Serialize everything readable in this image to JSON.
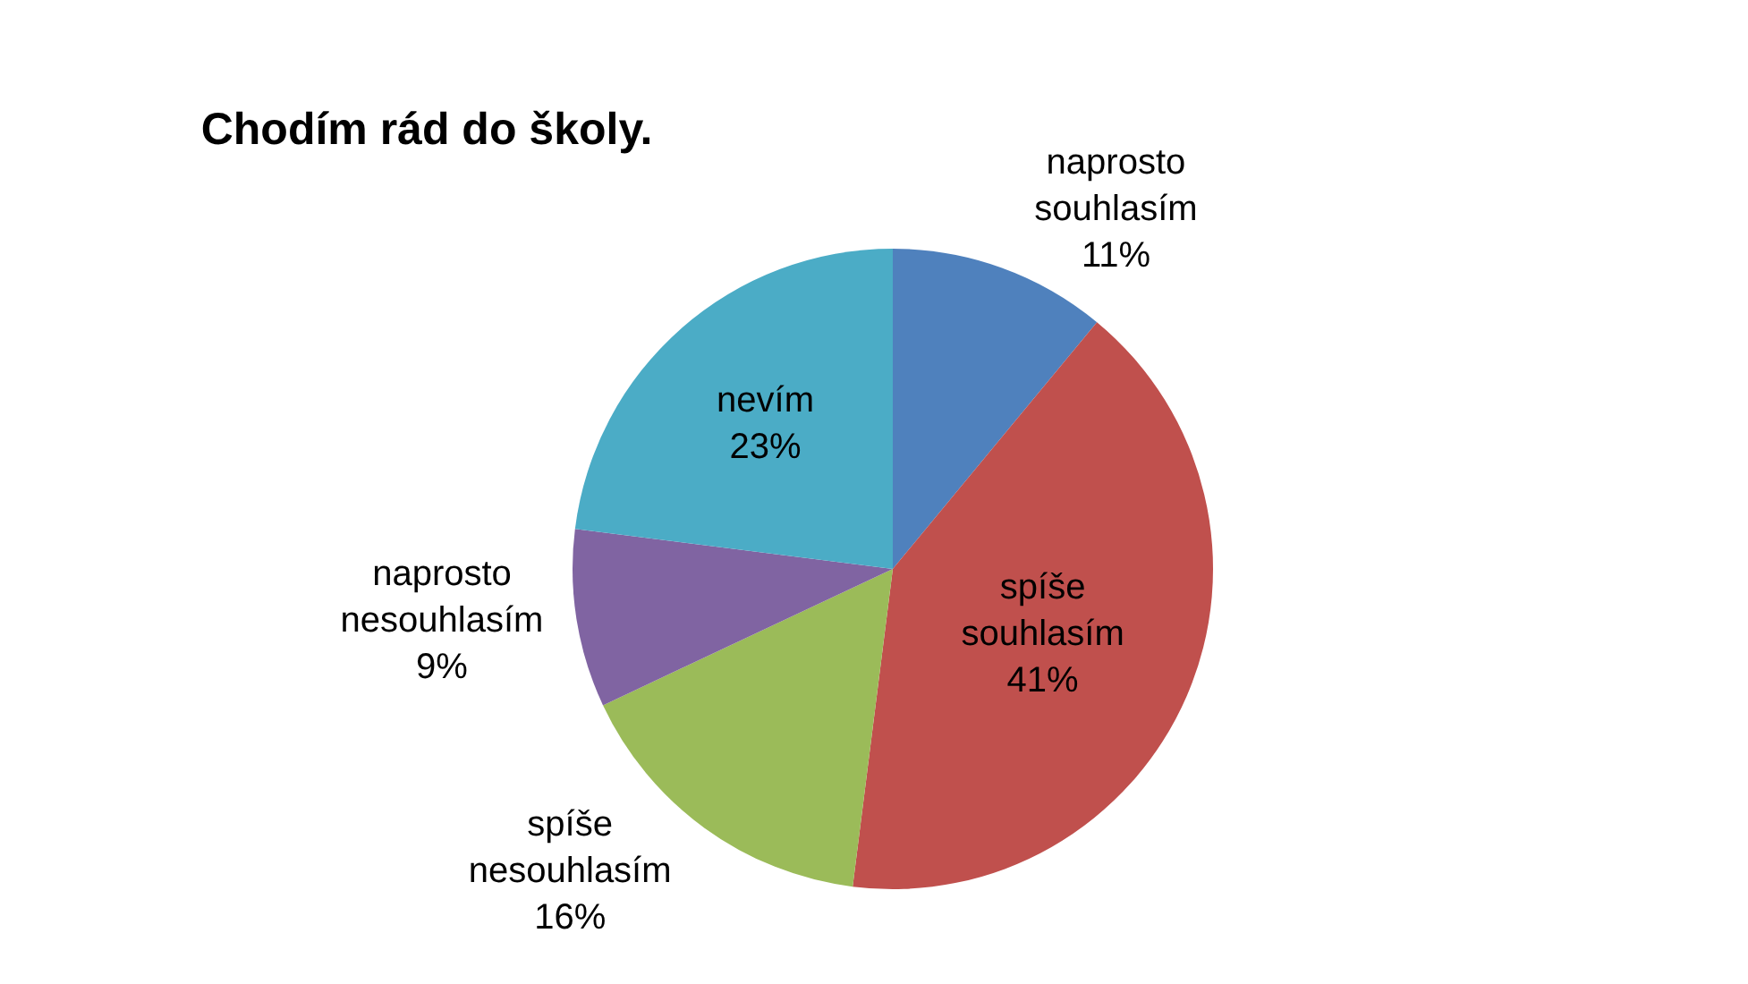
{
  "chart_data": {
    "type": "pie",
    "title": "Chodím rád do školy.",
    "categories": [
      "naprosto souhlasím",
      "spíše souhlasím",
      "spíše nesouhlasím",
      "naprosto nesouhlasím",
      "nevím"
    ],
    "values": [
      11,
      41,
      16,
      9,
      23
    ],
    "value_labels": [
      "11%",
      "41%",
      "16%",
      "9%",
      "23%"
    ],
    "colors": [
      "#4f81bd",
      "#c0504d",
      "#9bbb59",
      "#8064a2",
      "#4bacc6"
    ],
    "legend": false
  }
}
